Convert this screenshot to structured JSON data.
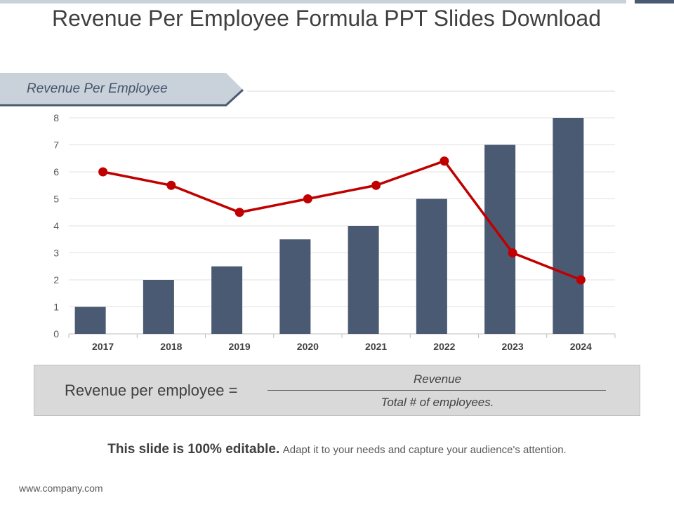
{
  "title": "Revenue Per Employee Formula PPT Slides Download",
  "tab_label": "Revenue Per Employee",
  "formula": {
    "lhs": "Revenue per employee =",
    "numerator": "Revenue",
    "denominator": "Total # of employees."
  },
  "caption": {
    "bold": "This slide is 100% editable.",
    "rest": "Adapt it to your needs and capture your audience's attention."
  },
  "footer_url": "www.company.com",
  "colors": {
    "bar": "#4a5a72",
    "line": "#c00000"
  },
  "chart_data": {
    "type": "bar+line",
    "categories": [
      "2017",
      "2018",
      "2019",
      "2020",
      "2021",
      "2022",
      "2023",
      "2024"
    ],
    "series": [
      {
        "name": "Bar series",
        "type": "bar",
        "values": [
          1,
          2,
          2.5,
          3.5,
          4,
          5,
          7,
          8
        ]
      },
      {
        "name": "Line series",
        "type": "line",
        "values": [
          6,
          5.5,
          4.5,
          5,
          5.5,
          6.4,
          3,
          2
        ]
      }
    ],
    "yticks": [
      "0",
      "1",
      "2",
      "3",
      "4",
      "5",
      "6",
      "7",
      "8"
    ],
    "ylim": [
      0,
      8
    ],
    "grid": true,
    "legend": "none"
  }
}
